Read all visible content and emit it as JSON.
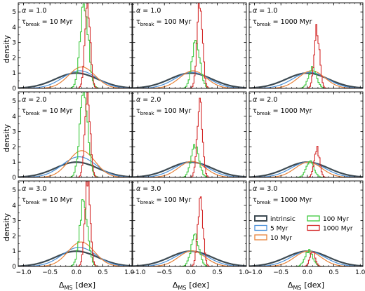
{
  "chart_data": {
    "type": "line",
    "layout": "3x3 grid of histogram panels (shared axes)",
    "xlabel": "Δ_MS [dex]",
    "xlabel_parts": {
      "main": "Δ",
      "sub": "MS",
      "unit": "[dex]"
    },
    "ylabel": "density",
    "xlim": [
      -1.1,
      1.05
    ],
    "ylim": [
      0,
      5.6
    ],
    "xticks": [
      -1.0,
      -0.5,
      0.0,
      0.5,
      1.0
    ],
    "xtick_labels": [
      "−1.0",
      "−0.5",
      "0.0",
      "0.5",
      "1.0"
    ],
    "yticks": [
      0,
      1,
      2,
      3,
      4,
      5
    ],
    "ytick_labels": [
      "0",
      "1",
      "2",
      "3",
      "4",
      "5"
    ],
    "grid": false,
    "legend_position": "inside lower-right panel, center",
    "series_colors": {
      "intrinsic": "#3d4a52",
      "5 Myr": "#4a90d9",
      "10 Myr": "#e8833a",
      "100 Myr": "#3cc83c",
      "1000 Myr": "#d42a2a"
    },
    "legend": [
      {
        "key": "intrinsic",
        "label": "intrinsic"
      },
      {
        "key": "100 Myr",
        "label": "100 Myr"
      },
      {
        "key": "5 Myr",
        "label": "5 Myr"
      },
      {
        "key": "1000 Myr",
        "label": "1000 Myr"
      },
      {
        "key": "10 Myr",
        "label": "10 Myr"
      }
    ],
    "panels": [
      {
        "alpha": "1.0",
        "tau": "10",
        "series": [
          {
            "key": "intrinsic",
            "mu": 0.0,
            "peak": 1.0
          },
          {
            "key": "5 Myr",
            "mu": 0.06,
            "peak": 1.15
          },
          {
            "key": "10 Myr",
            "mu": 0.1,
            "peak": 1.4
          },
          {
            "key": "100 Myr",
            "mu": 0.15,
            "peak": 5.6
          },
          {
            "key": "1000 Myr",
            "mu": 0.21,
            "peak": 5.6
          }
        ]
      },
      {
        "alpha": "1.0",
        "tau": "100",
        "series": [
          {
            "key": "intrinsic",
            "mu": 0.0,
            "peak": 1.0
          },
          {
            "key": "5 Myr",
            "mu": 0.02,
            "peak": 1.05
          },
          {
            "key": "10 Myr",
            "mu": 0.04,
            "peak": 1.15
          },
          {
            "key": "100 Myr",
            "mu": 0.1,
            "peak": 3.1
          },
          {
            "key": "1000 Myr",
            "mu": 0.17,
            "peak": 5.6
          }
        ]
      },
      {
        "alpha": "1.0",
        "tau": "1000",
        "series": [
          {
            "key": "intrinsic",
            "mu": 0.0,
            "peak": 1.0
          },
          {
            "key": "5 Myr",
            "mu": 0.05,
            "peak": 1.05
          },
          {
            "key": "10 Myr",
            "mu": 0.08,
            "peak": 1.15
          },
          {
            "key": "100 Myr",
            "mu": 0.1,
            "peak": 1.3
          },
          {
            "key": "1000 Myr",
            "mu": 0.18,
            "peak": 3.9
          }
        ]
      },
      {
        "alpha": "2.0",
        "tau": "10",
        "series": [
          {
            "key": "intrinsic",
            "mu": 0.0,
            "peak": 1.0
          },
          {
            "key": "5 Myr",
            "mu": 0.05,
            "peak": 1.35
          },
          {
            "key": "10 Myr",
            "mu": 0.1,
            "peak": 1.75
          },
          {
            "key": "100 Myr",
            "mu": 0.14,
            "peak": 5.6
          },
          {
            "key": "1000 Myr",
            "mu": 0.21,
            "peak": 5.6
          }
        ]
      },
      {
        "alpha": "2.0",
        "tau": "100",
        "series": [
          {
            "key": "intrinsic",
            "mu": 0.0,
            "peak": 1.0
          },
          {
            "key": "5 Myr",
            "mu": 0.01,
            "peak": 1.02
          },
          {
            "key": "10 Myr",
            "mu": 0.02,
            "peak": 1.05
          },
          {
            "key": "100 Myr",
            "mu": 0.08,
            "peak": 2.0
          },
          {
            "key": "1000 Myr",
            "mu": 0.17,
            "peak": 4.9
          }
        ]
      },
      {
        "alpha": "2.0",
        "tau": "1000",
        "series": [
          {
            "key": "intrinsic",
            "mu": 0.0,
            "peak": 1.0
          },
          {
            "key": "5 Myr",
            "mu": 0.01,
            "peak": 1.0
          },
          {
            "key": "10 Myr",
            "mu": 0.02,
            "peak": 1.0
          },
          {
            "key": "100 Myr",
            "mu": 0.05,
            "peak": 1.0
          },
          {
            "key": "1000 Myr",
            "mu": 0.18,
            "peak": 1.9
          }
        ]
      },
      {
        "alpha": "3.0",
        "tau": "10",
        "series": [
          {
            "key": "intrinsic",
            "mu": 0.0,
            "peak": 1.0
          },
          {
            "key": "5 Myr",
            "mu": 0.05,
            "peak": 1.25
          },
          {
            "key": "10 Myr",
            "mu": 0.09,
            "peak": 1.6
          },
          {
            "key": "100 Myr",
            "mu": 0.14,
            "peak": 4.2
          },
          {
            "key": "1000 Myr",
            "mu": 0.21,
            "peak": 5.6
          }
        ]
      },
      {
        "alpha": "3.0",
        "tau": "100",
        "series": [
          {
            "key": "intrinsic",
            "mu": 0.0,
            "peak": 1.0
          },
          {
            "key": "5 Myr",
            "mu": 0.01,
            "peak": 1.0
          },
          {
            "key": "10 Myr",
            "mu": 0.02,
            "peak": 1.02
          },
          {
            "key": "100 Myr",
            "mu": 0.08,
            "peak": 2.0
          },
          {
            "key": "1000 Myr",
            "mu": 0.18,
            "peak": 4.3
          }
        ]
      },
      {
        "alpha": "3.0",
        "tau": "1000",
        "series": [
          {
            "key": "intrinsic",
            "mu": 0.0,
            "peak": 1.0
          },
          {
            "key": "5 Myr",
            "mu": 0.01,
            "peak": 1.0
          },
          {
            "key": "10 Myr",
            "mu": 0.01,
            "peak": 1.0
          },
          {
            "key": "100 Myr",
            "mu": 0.03,
            "peak": 1.0
          },
          {
            "key": "1000 Myr",
            "mu": 0.1,
            "peak": 1.0
          }
        ]
      }
    ]
  }
}
